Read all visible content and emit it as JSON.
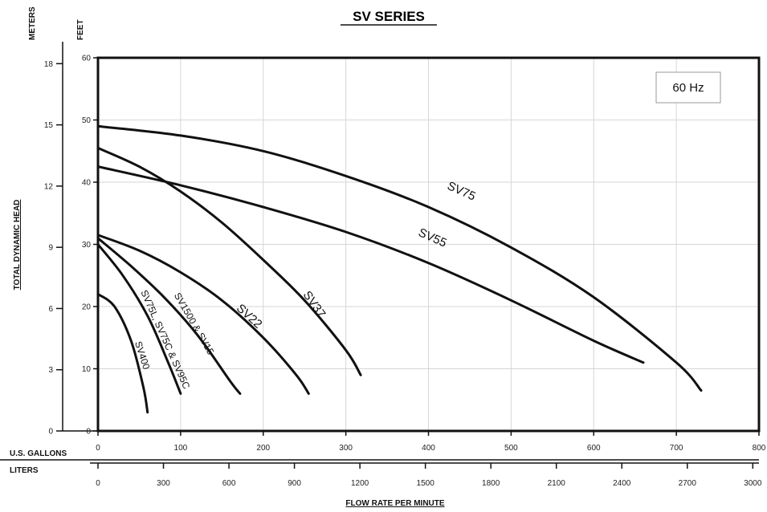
{
  "chart_data": {
    "type": "line",
    "title": "SV SERIES",
    "annotation": "60 Hz",
    "ylabel": "TOTAL DYNAMIC HEAD",
    "xlabel": "FLOW RATE PER MINUTE",
    "y_units": {
      "meters": "METERS",
      "feet": "FEET"
    },
    "x_units": {
      "gallons": "U.S. GALLONS",
      "liters": "LITERS"
    },
    "xlim": [
      0,
      800
    ],
    "ylim": [
      0,
      60
    ],
    "grid": true,
    "feet_ticks": [
      "0",
      "10",
      "20",
      "30",
      "40",
      "50",
      "60"
    ],
    "meter_ticks": [
      "0",
      "3",
      "6",
      "9",
      "12",
      "15",
      "18"
    ],
    "gallon_ticks": [
      "0",
      "100",
      "200",
      "300",
      "400",
      "500",
      "600",
      "700",
      "800"
    ],
    "liter_ticks": [
      "0",
      "300",
      "600",
      "900",
      "1200",
      "1500",
      "1800",
      "2100",
      "2400",
      "2700",
      "3000"
    ],
    "series": [
      {
        "name": "SV75",
        "x": [
          0,
          100,
          200,
          300,
          400,
          500,
          600,
          700,
          730
        ],
        "y": [
          49,
          47.5,
          45,
          41,
          36,
          29.5,
          21.5,
          11,
          6.5
        ]
      },
      {
        "name": "SV55",
        "x": [
          0,
          100,
          200,
          300,
          400,
          500,
          600,
          660
        ],
        "y": [
          42.5,
          39.5,
          36,
          32,
          27,
          21,
          14.5,
          11
        ]
      },
      {
        "name": "SV37",
        "x": [
          0,
          50,
          100,
          150,
          200,
          250,
          300,
          318
        ],
        "y": [
          45.5,
          42.5,
          38.5,
          33.5,
          27.5,
          21,
          13,
          9
        ]
      },
      {
        "name": "SV22",
        "x": [
          0,
          50,
          100,
          150,
          200,
          240,
          255
        ],
        "y": [
          31.5,
          29,
          25.5,
          21,
          15,
          9,
          6
        ]
      },
      {
        "name": "SV1500 & SV15",
        "x": [
          0,
          40,
          80,
          120,
          160,
          172
        ],
        "y": [
          31,
          26.5,
          21.5,
          15.5,
          8,
          6
        ]
      },
      {
        "name": "SV75L, SV75C & SV95C",
        "x": [
          0,
          30,
          60,
          85,
          100
        ],
        "y": [
          30,
          25,
          18.5,
          11,
          6
        ]
      },
      {
        "name": "SV400",
        "x": [
          0,
          20,
          40,
          55,
          60
        ],
        "y": [
          22,
          20,
          14.5,
          7,
          3
        ]
      }
    ]
  }
}
